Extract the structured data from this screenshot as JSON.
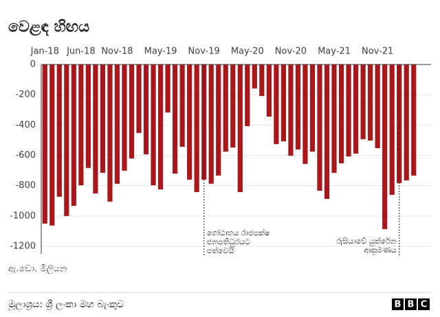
{
  "chart_data": {
    "type": "bar",
    "title": "වෙළඳ හිඟය",
    "y_label": "ඇ.ඩො. මිලියන",
    "source": "මූලාශ්‍රය: ශ්‍රී ලංකා මහ බැංකුව",
    "logo": [
      "B",
      "B",
      "C"
    ],
    "categories": [
      "Jan-18",
      null,
      null,
      null,
      null,
      "Jun-18",
      null,
      null,
      null,
      null,
      "Nov-18",
      null,
      null,
      null,
      null,
      null,
      "May-19",
      null,
      null,
      null,
      null,
      null,
      "Nov-19",
      null,
      null,
      null,
      null,
      null,
      "May-20",
      null,
      null,
      null,
      null,
      null,
      "Nov-20",
      null,
      null,
      null,
      null,
      null,
      "May-21",
      null,
      null,
      null,
      null,
      null,
      "Nov-21",
      null,
      null,
      null,
      null,
      null
    ],
    "values": [
      -1050,
      -1063,
      -873,
      -1000,
      -933,
      -797,
      -683,
      -851,
      -715,
      -905,
      -787,
      -701,
      -620,
      -452,
      -593,
      -797,
      -824,
      -317,
      -720,
      -543,
      -760,
      -842,
      -760,
      -787,
      -733,
      -575,
      -548,
      -842,
      -407,
      -158,
      -208,
      -344,
      -525,
      -507,
      -602,
      -561,
      -656,
      -575,
      -833,
      -887,
      -715,
      -652,
      -607,
      -588,
      -493,
      -502,
      -552,
      -1086,
      -860,
      -783,
      -765,
      -733
    ],
    "color": "#a8171c",
    "ylim": [
      -1250,
      0
    ],
    "yticks": [
      0,
      -200,
      -400,
      -600,
      -800,
      -1000,
      -1200
    ],
    "grid": true,
    "annotations": [
      {
        "lines": [
          "ගෝඨාභය රාජපක්ෂ",
          "ජනපතිධුරයට",
          "පත්වෙයි"
        ]
      },
      {
        "lines": [
          "රුසියාවේ යුක්රේන",
          "ආක්‍රමණය"
        ]
      }
    ]
  }
}
